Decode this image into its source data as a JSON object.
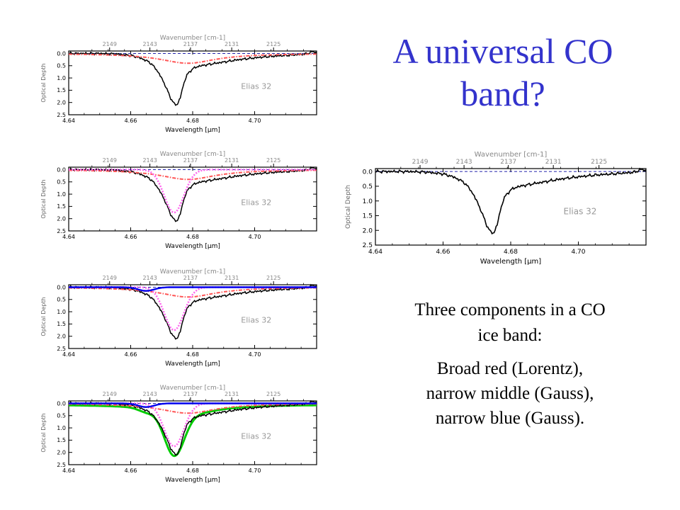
{
  "slide": {
    "title_lines": [
      "A universal CO",
      "band?"
    ],
    "caption1_lines": [
      "Three components in a CO",
      "ice band:"
    ],
    "caption2_lines": [
      "Broad red (Lorentz),",
      "narrow middle (Gauss),",
      "narrow blue (Gauss)."
    ]
  },
  "colors": {
    "observed": "#000000",
    "lorentz": "#ff5555",
    "gauss_middle": "#ff66ee",
    "gauss_blue": "#0000ee",
    "fit_total": "#00cc00",
    "baseline": "#2222aa",
    "annotation": "#999999"
  },
  "chart_data": [
    {
      "id": "panel-1",
      "type": "line",
      "xlabel": "Wavelength [μm]",
      "ylabel": "Optical Depth",
      "top_axis_label": "Wavenumber [cm-1]",
      "annotation": "Elias 32",
      "xlim": [
        4.64,
        4.72
      ],
      "ylim": [
        2.5,
        -0.1
      ],
      "xticks": [
        "4.64",
        "4.66",
        "4.68",
        "4.70"
      ],
      "yticks": [
        "0.0",
        "0.5",
        "1.0",
        "1.5",
        "2.0",
        "2.5"
      ],
      "top_ticks": [
        "2149",
        "2143",
        "2137",
        "2131",
        "2125"
      ],
      "series": [
        "observed",
        "lorentz"
      ],
      "observed_profile": {
        "x": [
          4.64,
          4.65,
          4.655,
          4.66,
          4.663,
          4.666,
          4.668,
          4.67,
          4.672,
          4.673,
          4.674,
          4.675,
          4.676,
          4.677,
          4.678,
          4.68,
          4.682,
          4.685,
          4.69,
          4.695,
          4.7,
          4.705,
          4.71,
          4.715,
          4.717,
          4.718,
          4.719,
          4.72
        ],
        "y": [
          0.0,
          0.0,
          0.02,
          0.08,
          0.18,
          0.35,
          0.6,
          1.0,
          1.55,
          1.85,
          2.05,
          2.1,
          1.8,
          1.3,
          0.9,
          0.62,
          0.52,
          0.45,
          0.35,
          0.25,
          0.18,
          0.12,
          0.08,
          0.04,
          0.01,
          -0.05,
          -0.08,
          0.0
        ]
      },
      "lorentz": {
        "center": 4.6785,
        "fwhm": 0.022,
        "peak": 0.4
      }
    },
    {
      "id": "panel-2",
      "type": "line",
      "xlabel": "Wavelength [μm]",
      "ylabel": "Optical Depth",
      "top_axis_label": "Wavenumber [cm-1]",
      "annotation": "Elias 32",
      "xlim": [
        4.64,
        4.72
      ],
      "ylim": [
        2.5,
        -0.1
      ],
      "xticks": [
        "4.64",
        "4.66",
        "4.68",
        "4.70"
      ],
      "yticks": [
        "0.0",
        "0.5",
        "1.0",
        "1.5",
        "2.0",
        "2.5"
      ],
      "top_ticks": [
        "2149",
        "2143",
        "2137",
        "2131",
        "2125"
      ],
      "series": [
        "observed",
        "lorentz",
        "gauss_middle"
      ],
      "lorentz": {
        "center": 4.6785,
        "fwhm": 0.022,
        "peak": 0.4
      },
      "gauss_middle": {
        "center": 4.674,
        "fwhm": 0.0075,
        "peak": 1.75
      }
    },
    {
      "id": "panel-3",
      "type": "line",
      "xlabel": "Wavelength [μm]",
      "ylabel": "Optical Depth",
      "top_axis_label": "Wavenumber [cm-1]",
      "annotation": "Elias 32",
      "xlim": [
        4.64,
        4.72
      ],
      "ylim": [
        2.5,
        -0.1
      ],
      "xticks": [
        "4.64",
        "4.66",
        "4.68",
        "4.70"
      ],
      "yticks": [
        "0.0",
        "0.5",
        "1.0",
        "1.5",
        "2.0",
        "2.5"
      ],
      "top_ticks": [
        "2149",
        "2143",
        "2137",
        "2131",
        "2125"
      ],
      "series": [
        "observed",
        "lorentz",
        "gauss_middle",
        "gauss_blue"
      ],
      "lorentz": {
        "center": 4.6785,
        "fwhm": 0.022,
        "peak": 0.4
      },
      "gauss_middle": {
        "center": 4.674,
        "fwhm": 0.0075,
        "peak": 1.75
      },
      "gauss_blue": {
        "center": 4.665,
        "fwhm": 0.006,
        "peak": 0.15
      }
    },
    {
      "id": "panel-4",
      "type": "line",
      "xlabel": "Wavelength [μm]",
      "ylabel": "Optical Depth",
      "top_axis_label": "Wavenumber [cm-1]",
      "annotation": "Elias 32",
      "xlim": [
        4.64,
        4.72
      ],
      "ylim": [
        2.5,
        -0.1
      ],
      "xticks": [
        "4.64",
        "4.66",
        "4.68",
        "4.70"
      ],
      "yticks": [
        "0.0",
        "0.5",
        "1.0",
        "1.5",
        "2.0",
        "2.5"
      ],
      "top_ticks": [
        "2149",
        "2143",
        "2137",
        "2131",
        "2125"
      ],
      "series": [
        "observed",
        "lorentz",
        "gauss_middle",
        "gauss_blue",
        "fit_total"
      ],
      "lorentz": {
        "center": 4.6785,
        "fwhm": 0.022,
        "peak": 0.4
      },
      "gauss_middle": {
        "center": 4.674,
        "fwhm": 0.0075,
        "peak": 1.75
      },
      "gauss_blue": {
        "center": 4.665,
        "fwhm": 0.006,
        "peak": 0.15
      }
    },
    {
      "id": "panel-main",
      "type": "line",
      "xlabel": "Wavelength [μm]",
      "ylabel": "Optical Depth",
      "top_axis_label": "Wavenumber [cm-1]",
      "annotation": "Elias 32",
      "xlim": [
        4.64,
        4.72
      ],
      "ylim": [
        2.5,
        -0.1
      ],
      "xticks": [
        "4.64",
        "4.66",
        "4.68",
        "4.70"
      ],
      "yticks": [
        "0.0",
        "0.5",
        "1.0",
        "1.5",
        "2.0",
        "2.5"
      ],
      "top_ticks": [
        "2149",
        "2143",
        "2137",
        "2131",
        "2125"
      ],
      "series": [
        "observed"
      ]
    }
  ]
}
